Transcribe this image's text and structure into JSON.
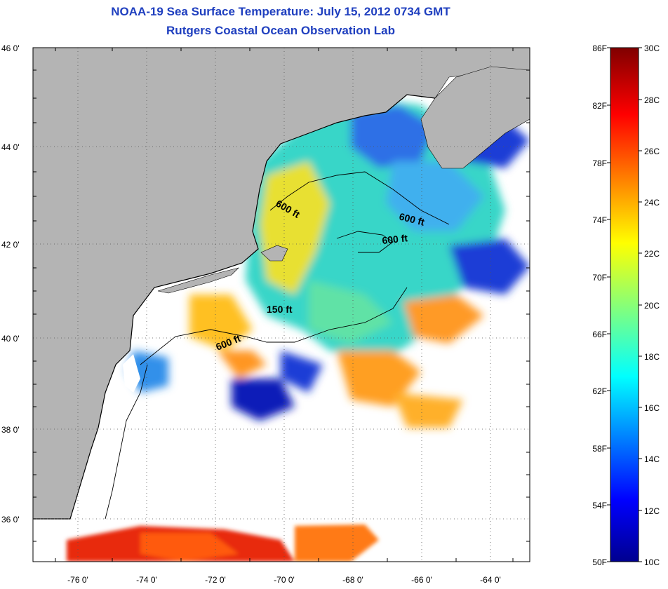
{
  "header": {
    "title": "NOAA-19 Sea Surface Temperature:  July 15, 2012 0734 GMT",
    "subtitle": "Rutgers Coastal Ocean Observation Lab"
  },
  "map": {
    "lat_labels": [
      "46 0'",
      "44 0'",
      "42 0'",
      "40 0'",
      "38 0'",
      "36 0'"
    ],
    "lon_labels": [
      "-76 0'",
      "-74 0'",
      "-72 0'",
      "-70 0'",
      "-68 0'",
      "-66 0'",
      "-64 0'"
    ],
    "contour_labels": [
      "600 ft",
      "600 ft",
      "600 ft",
      "150 ft",
      "600 ft"
    ]
  },
  "colorbar": {
    "fahrenheit_labels": [
      "86F",
      "82F",
      "78F",
      "74F",
      "70F",
      "66F",
      "62F",
      "58F",
      "54F",
      "50F"
    ],
    "celsius_labels": [
      "30C",
      "28C",
      "26C",
      "24C",
      "22C",
      "20C",
      "18C",
      "16C",
      "14C",
      "12C",
      "10C"
    ]
  },
  "colors": {
    "title": "#1f3fbf",
    "land": "#b4b4b4",
    "no_data": "#ffffff"
  }
}
